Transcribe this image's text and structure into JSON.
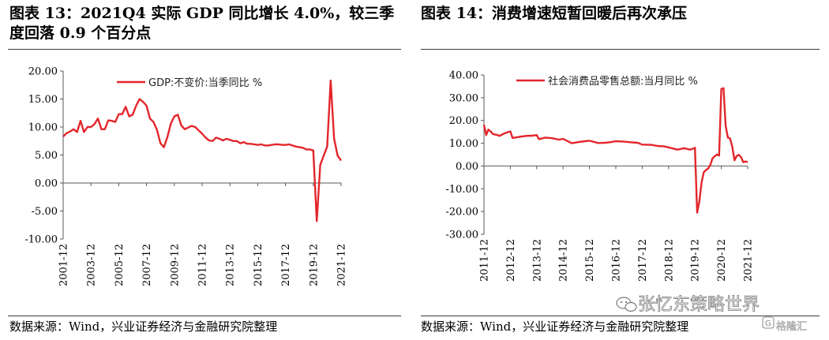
{
  "left_panel": {
    "title": "图表 13：2021Q4 实际 GDP 同比增长 4.0%，较三季度回落 0.9 个百分点",
    "source": "数据来源：Wind，兴业证券经济与金融研究院整理"
  },
  "right_panel": {
    "title": "图表 14：消费增速短暂回暖后再次承压",
    "source": "数据来源：Wind，兴业证券经济与金融研究院整理"
  },
  "watermark": {
    "text": "张忆东策略世界",
    "corner_text": "格隆汇"
  },
  "colors": {
    "series": "#e3262b",
    "axis": "#595959",
    "text": "#000000"
  },
  "chart_data": [
    {
      "type": "line",
      "title": "",
      "xlabel": "",
      "ylabel": "",
      "ylim": [
        -10,
        20
      ],
      "y_ticks": [
        -10,
        -5,
        0,
        5,
        10,
        15,
        20
      ],
      "y_tick_labels": [
        "-10.00",
        "-5.00",
        "0.00",
        "5.00",
        "10.00",
        "15.00",
        "20.00"
      ],
      "x_tick_labels": [
        "2001-12",
        "2003-12",
        "2005-12",
        "2007-12",
        "2009-12",
        "2011-12",
        "2013-12",
        "2015-12",
        "2017-12",
        "2019-12",
        "2021-12"
      ],
      "x_ticks": [
        2001.75,
        2003.75,
        2005.75,
        2007.75,
        2009.75,
        2011.75,
        2013.75,
        2015.75,
        2017.75,
        2019.75,
        2021.75
      ],
      "xlim": [
        2001.75,
        2021.75
      ],
      "legend_position": "top",
      "grid": false,
      "series": [
        {
          "name": "GDP:不变价:当季同比 %",
          "x": [
            2001.75,
            2002.0,
            2002.25,
            2002.5,
            2002.75,
            2003.0,
            2003.25,
            2003.5,
            2003.75,
            2004.0,
            2004.25,
            2004.5,
            2004.75,
            2005.0,
            2005.25,
            2005.5,
            2005.75,
            2006.0,
            2006.25,
            2006.5,
            2006.75,
            2007.0,
            2007.25,
            2007.5,
            2007.75,
            2008.0,
            2008.25,
            2008.5,
            2008.75,
            2009.0,
            2009.25,
            2009.5,
            2009.75,
            2010.0,
            2010.25,
            2010.5,
            2010.75,
            2011.0,
            2011.25,
            2011.5,
            2011.75,
            2012.0,
            2012.25,
            2012.5,
            2012.75,
            2013.0,
            2013.25,
            2013.5,
            2013.75,
            2014.0,
            2014.25,
            2014.5,
            2014.75,
            2015.0,
            2015.25,
            2015.5,
            2015.75,
            2016.0,
            2016.25,
            2016.5,
            2016.75,
            2017.0,
            2017.25,
            2017.5,
            2017.75,
            2018.0,
            2018.25,
            2018.5,
            2018.75,
            2019.0,
            2019.25,
            2019.5,
            2019.75,
            2020.0,
            2020.25,
            2020.5,
            2020.75,
            2021.0,
            2021.25,
            2021.5,
            2021.75
          ],
          "values": [
            8.3,
            8.9,
            9.2,
            9.6,
            9.1,
            11.1,
            9.1,
            10.0,
            10.0,
            10.5,
            11.5,
            9.6,
            9.6,
            11.2,
            11.1,
            10.9,
            12.3,
            12.3,
            13.6,
            11.9,
            12.2,
            13.8,
            15.0,
            14.5,
            13.8,
            11.5,
            10.9,
            9.5,
            7.1,
            6.4,
            8.2,
            10.6,
            11.9,
            12.2,
            10.3,
            9.6,
            9.9,
            10.2,
            10.0,
            9.4,
            8.8,
            8.1,
            7.6,
            7.5,
            8.1,
            7.9,
            7.6,
            7.9,
            7.7,
            7.5,
            7.5,
            7.1,
            7.3,
            7.0,
            7.0,
            6.9,
            6.8,
            6.9,
            6.7,
            6.7,
            6.8,
            6.9,
            6.9,
            6.8,
            6.8,
            6.9,
            6.7,
            6.5,
            6.4,
            6.3,
            6.0,
            6.0,
            5.8,
            -6.8,
            3.2,
            4.9,
            6.5,
            18.3,
            7.9,
            4.9,
            4.0
          ]
        }
      ]
    },
    {
      "type": "line",
      "title": "",
      "xlabel": "",
      "ylabel": "",
      "ylim": [
        -30,
        40
      ],
      "y_ticks": [
        -30,
        -20,
        -10,
        0,
        10,
        20,
        30,
        40
      ],
      "y_tick_labels": [
        "-30.00",
        "-20.00",
        "-10.00",
        "0.00",
        "10.00",
        "20.00",
        "30.00",
        "40.00"
      ],
      "x_tick_labels": [
        "2011-12",
        "2012-12",
        "2013-12",
        "2014-12",
        "2015-12",
        "2016-12",
        "2017-12",
        "2018-12",
        "2019-12",
        "2020-12",
        "2021-12"
      ],
      "x_ticks": [
        2011.917,
        2012.917,
        2013.917,
        2014.917,
        2015.917,
        2016.917,
        2017.917,
        2018.917,
        2019.917,
        2020.917,
        2021.917
      ],
      "xlim": [
        2011.917,
        2021.917
      ],
      "legend_position": "top",
      "grid": false,
      "series": [
        {
          "name": "社会消费品零售总额:当月同比 %",
          "x": [
            2011.917,
            2012.0,
            2012.083,
            2012.167,
            2012.25,
            2012.333,
            2012.417,
            2012.5,
            2012.667,
            2012.833,
            2012.917,
            2013.0,
            2013.25,
            2013.5,
            2013.75,
            2013.917,
            2014.0,
            2014.25,
            2014.5,
            2014.75,
            2014.917,
            2015.25,
            2015.5,
            2015.75,
            2015.917,
            2016.25,
            2016.5,
            2016.75,
            2016.917,
            2017.25,
            2017.5,
            2017.75,
            2017.917,
            2018.25,
            2018.5,
            2018.75,
            2018.917,
            2019.25,
            2019.5,
            2019.75,
            2019.917,
            2020.0,
            2020.083,
            2020.167,
            2020.25,
            2020.333,
            2020.417,
            2020.5,
            2020.583,
            2020.667,
            2020.75,
            2020.833,
            2020.917,
            2021.0,
            2021.083,
            2021.167,
            2021.25,
            2021.333,
            2021.417,
            2021.5,
            2021.583,
            2021.667,
            2021.75,
            2021.833,
            2021.917
          ],
          "values": [
            18.1,
            13.6,
            16.0,
            15.2,
            14.1,
            13.8,
            13.7,
            13.2,
            14.2,
            14.9,
            15.2,
            12.3,
            12.8,
            13.2,
            13.3,
            13.6,
            11.8,
            12.5,
            12.2,
            11.6,
            11.9,
            10.0,
            10.5,
            10.9,
            11.1,
            10.1,
            10.2,
            10.5,
            10.9,
            10.7,
            10.4,
            10.2,
            9.4,
            9.3,
            8.8,
            8.6,
            8.2,
            7.2,
            7.8,
            7.2,
            8.0,
            -20.5,
            -15.8,
            -7.5,
            -2.8,
            -1.8,
            -1.1,
            0.5,
            3.3,
            4.3,
            5.0,
            4.6,
            33.8,
            34.2,
            17.7,
            12.4,
            12.1,
            8.5,
            2.5,
            4.4,
            4.9,
            3.9,
            1.7,
            2.0,
            1.7
          ]
        }
      ]
    }
  ]
}
